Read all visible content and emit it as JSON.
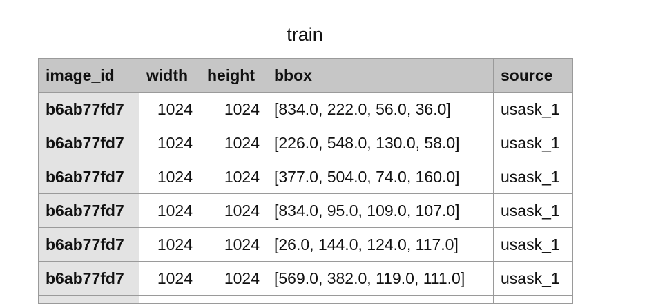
{
  "title": "train",
  "columns": [
    "image_id",
    "width",
    "height",
    "bbox",
    "source"
  ],
  "rows": [
    {
      "image_id": "b6ab77fd7",
      "width": "1024",
      "height": "1024",
      "bbox": "[834.0, 222.0, 56.0, 36.0]",
      "source": "usask_1"
    },
    {
      "image_id": "b6ab77fd7",
      "width": "1024",
      "height": "1024",
      "bbox": "[226.0, 548.0, 130.0, 58.0]",
      "source": "usask_1"
    },
    {
      "image_id": "b6ab77fd7",
      "width": "1024",
      "height": "1024",
      "bbox": "[377.0, 504.0, 74.0, 160.0]",
      "source": "usask_1"
    },
    {
      "image_id": "b6ab77fd7",
      "width": "1024",
      "height": "1024",
      "bbox": "[834.0, 95.0, 109.0, 107.0]",
      "source": "usask_1"
    },
    {
      "image_id": "b6ab77fd7",
      "width": "1024",
      "height": "1024",
      "bbox": "[26.0, 144.0, 124.0, 117.0]",
      "source": "usask_1"
    },
    {
      "image_id": "b6ab77fd7",
      "width": "1024",
      "height": "1024",
      "bbox": "[569.0, 382.0, 119.0, 111.0]",
      "source": "usask_1"
    }
  ]
}
